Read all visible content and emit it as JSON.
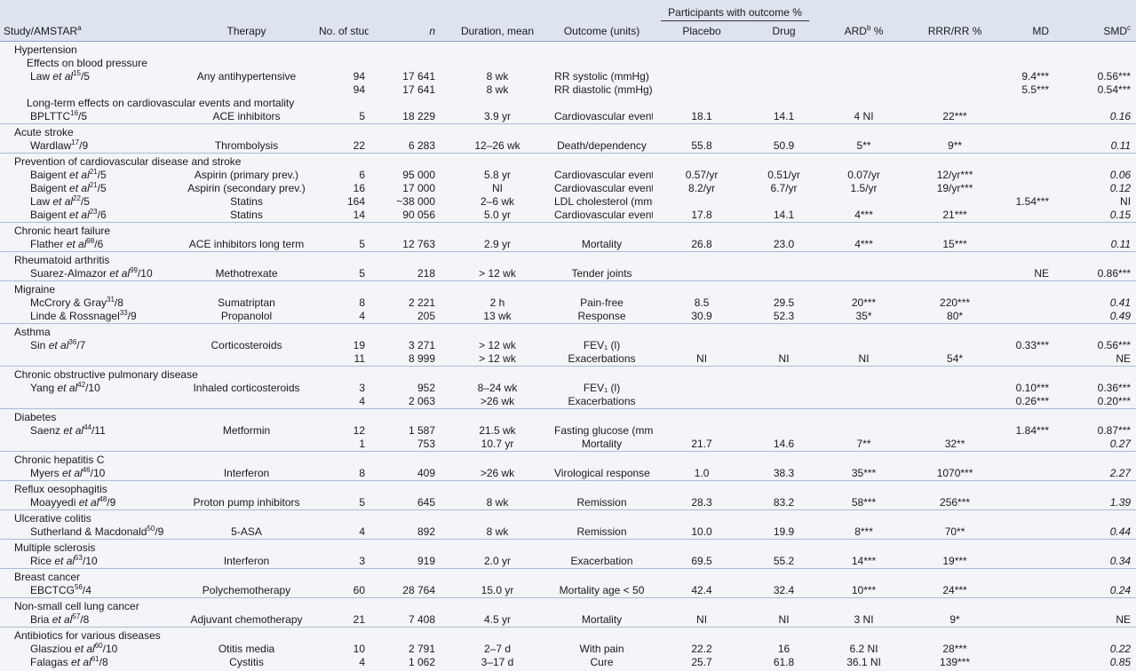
{
  "table": {
    "header": {
      "span": "Participants with outcome %",
      "study": {
        "text": "Study/AMSTAR",
        "sup": "a"
      },
      "therapy": "Therapy",
      "studies": "No. of studies",
      "n": "n",
      "duration": "Duration, mean",
      "outcome": "Outcome (units)",
      "placebo": "Placebo",
      "drug": "Drug",
      "ard": {
        "text": "ARD",
        "sup": "b",
        "rest": " %"
      },
      "rrr": "RRR/RR %",
      "md": "MD",
      "smd": {
        "text": "SMD",
        "sup": "c"
      }
    },
    "groups": [
      {
        "title": "Hypertension",
        "items": [
          {
            "subtitle": "Effects on blood pressure"
          },
          {
            "study": {
              "author": "Law",
              "et_al": "et al",
              "ref": "15",
              "amstar": "/5"
            },
            "cells": [
              "Any antihypertensive",
              "94",
              "17 641",
              "8 wk",
              "RR systolic (mmHg)",
              null,
              null,
              null,
              null,
              "9.4***",
              "0.56***"
            ],
            "smd_italic": false
          },
          {
            "cells": [
              null,
              "94",
              "17 641",
              "8 wk",
              "RR diastolic (mmHg)",
              null,
              null,
              null,
              null,
              "5.5***",
              "0.54***"
            ],
            "smd_italic": false
          },
          {
            "subtitle": "Long-term effects on cardiovascular events and mortality"
          },
          {
            "study": {
              "author": "BPLTTC",
              "ref": "16",
              "amstar": "/5"
            },
            "cells": [
              "ACE inhibitors",
              "5",
              "18 229",
              "3.9 yr",
              "Cardiovascular events",
              "18.1",
              "14.1",
              "4 NI",
              "22***",
              null,
              "0.16"
            ],
            "smd_italic": true
          }
        ]
      },
      {
        "title": "Acute stroke",
        "items": [
          {
            "study": {
              "author": "Wardlaw",
              "ref": "17",
              "amstar": "/9"
            },
            "cells": [
              "Thrombolysis",
              "22",
              "6 283",
              "12–26 wk",
              "Death/dependency",
              "55.8",
              "50.9",
              "5**",
              "9**",
              null,
              "0.11"
            ],
            "smd_italic": true
          }
        ]
      },
      {
        "title": "Prevention of cardiovascular disease and stroke",
        "items": [
          {
            "study": {
              "author": "Baigent",
              "et_al": "et al",
              "ref": "21",
              "amstar": "/5"
            },
            "cells": [
              "Aspirin (primary prev.)",
              "6",
              "95 000",
              "5.8 yr",
              "Cardiovascular events",
              "0.57/yr",
              "0.51/yr",
              "0.07/yr",
              "12/yr***",
              null,
              "0.06"
            ],
            "smd_italic": true
          },
          {
            "study": {
              "author": "Baigent",
              "et_al": "et al",
              "ref": "21",
              "amstar": "/5"
            },
            "cells": [
              "Aspirin (secondary prev.)",
              "16",
              "17 000",
              "NI",
              "Cardiovascular events",
              "8.2/yr",
              "6.7/yr",
              "1.5/yr",
              "19/yr***",
              null,
              "0.12"
            ],
            "smd_italic": true
          },
          {
            "study": {
              "author": "Law",
              "et_al": "et al",
              "ref": "22",
              "amstar": "/5"
            },
            "cells": [
              "Statins",
              "164",
              "~38 000",
              "2–6 wk",
              "LDL cholesterol (mmol/l)",
              null,
              null,
              null,
              null,
              "1.54***",
              "NI"
            ],
            "smd_italic": false
          },
          {
            "study": {
              "author": "Baigent",
              "et_al": "et al",
              "ref": "23",
              "amstar": "/6"
            },
            "cells": [
              "Statins",
              "14",
              "90 056",
              "5.0 yr",
              "Cardiovascular events",
              "17.8",
              "14.1",
              "4***",
              "21***",
              null,
              "0.15"
            ],
            "smd_italic": true
          }
        ]
      },
      {
        "title": "Chronic heart failure",
        "items": [
          {
            "study": {
              "author": "Flather",
              "et_al": "et al",
              "ref": "98",
              "amstar": "/6"
            },
            "cells": [
              "ACE inhibitors long term",
              "5",
              "12 763",
              "2.9 yr",
              "Mortality",
              "26.8",
              "23.0",
              "4***",
              "15***",
              null,
              "0.11"
            ],
            "smd_italic": true
          }
        ]
      },
      {
        "title": "Rheumatoid arthritis",
        "items": [
          {
            "study": {
              "author": "Suarez-Almazor",
              "et_al": "et al",
              "ref": "99",
              "amstar": "/10"
            },
            "cells": [
              "Methotrexate",
              "5",
              "218",
              "> 12 wk",
              "Tender joints",
              null,
              null,
              null,
              null,
              "NE",
              "0.86***"
            ],
            "smd_italic": false
          }
        ]
      },
      {
        "title": "Migraine",
        "items": [
          {
            "study": {
              "author": "McCrory & Gray",
              "ref": "31",
              "amstar": "/8"
            },
            "cells": [
              "Sumatriptan",
              "8",
              "2 221",
              "2 h",
              "Pain-free",
              "8.5",
              "29.5",
              "20***",
              "220***",
              null,
              "0.41"
            ],
            "smd_italic": true
          },
          {
            "study": {
              "author": "Linde & Rossnagel",
              "ref": "33",
              "amstar": "/9"
            },
            "cells": [
              "Propanolol",
              "4",
              "205",
              "13 wk",
              "Response",
              "30.9",
              "52.3",
              "35*",
              "80*",
              null,
              "0.49"
            ],
            "smd_italic": true
          }
        ]
      },
      {
        "title": "Asthma",
        "items": [
          {
            "study": {
              "author": "Sin",
              "et_al": "et al",
              "ref": "36",
              "amstar": "/7"
            },
            "cells": [
              "Corticosteroids",
              "19",
              "3 271",
              "> 12 wk",
              "FEV₁ (l)",
              null,
              null,
              null,
              null,
              "0.33***",
              "0.56***"
            ],
            "smd_italic": false
          },
          {
            "cells": [
              null,
              "11",
              "8 999",
              "> 12 wk",
              "Exacerbations",
              "NI",
              "NI",
              "NI",
              "54*",
              null,
              "NE"
            ],
            "smd_italic": false
          }
        ]
      },
      {
        "title": "Chronic obstructive pulmonary disease",
        "items": [
          {
            "study": {
              "author": "Yang",
              "et_al": "et al",
              "ref": "42",
              "amstar": "/10"
            },
            "cells": [
              "Inhaled corticosteroids",
              "3",
              "952",
              "8–24 wk",
              "FEV₁ (l)",
              null,
              null,
              null,
              null,
              "0.10***",
              "0.36***"
            ],
            "smd_italic": false
          },
          {
            "cells": [
              null,
              "4",
              "2 063",
              ">26 wk",
              "Exacerbations",
              null,
              null,
              null,
              null,
              "0.26***",
              "0.20***"
            ],
            "smd_italic": false
          }
        ]
      },
      {
        "title": "Diabetes",
        "items": [
          {
            "study": {
              "author": "Saenz",
              "et_al": "et al",
              "ref": "44",
              "amstar": "/11"
            },
            "cells": [
              "Metformin",
              "12",
              "1 587",
              "21.5 wk",
              "Fasting glucose (mmol/l)",
              null,
              null,
              null,
              null,
              "1.84***",
              "0.87***"
            ],
            "smd_italic": false
          },
          {
            "cells": [
              null,
              "1",
              "753",
              "10.7 yr",
              "Mortality",
              "21.7",
              "14.6",
              "7**",
              "32**",
              null,
              "0.27"
            ],
            "smd_italic": true
          }
        ]
      },
      {
        "title": "Chronic hepatitis C",
        "items": [
          {
            "study": {
              "author": "Myers",
              "et_al": "et al",
              "ref": "46",
              "amstar": "/10"
            },
            "cells": [
              "Interferon",
              "8",
              "409",
              ">26 wk",
              "Virological response",
              "1.0",
              "38.3",
              "35***",
              "1070***",
              null,
              "2.27"
            ],
            "smd_italic": true
          }
        ]
      },
      {
        "title": "Reflux oesophagitis",
        "items": [
          {
            "study": {
              "author": "Moayyedi",
              "et_al": "et al",
              "ref": "48",
              "amstar": "/9"
            },
            "cells": [
              "Proton pump inhibitors",
              "5",
              "645",
              "8 wk",
              "Remission",
              "28.3",
              "83.2",
              "58***",
              "256***",
              null,
              "1.39"
            ],
            "smd_italic": true
          }
        ]
      },
      {
        "title": "Ulcerative colitis",
        "items": [
          {
            "study": {
              "author": "Sutherland & Macdonald",
              "ref": "50",
              "amstar": "/9"
            },
            "cells": [
              "5-ASA",
              "4",
              "892",
              "8 wk",
              "Remission",
              "10.0",
              "19.9",
              "8***",
              "70**",
              null,
              "0.44"
            ],
            "smd_italic": true
          }
        ]
      },
      {
        "title": "Multiple sclerosis",
        "items": [
          {
            "study": {
              "author": "Rice",
              "et_al": "et al",
              "ref": "53",
              "amstar": "/10"
            },
            "cells": [
              "Interferon",
              "3",
              "919",
              "2.0 yr",
              "Exacerbation",
              "69.5",
              "55.2",
              "14***",
              "19***",
              null,
              "0.34"
            ],
            "smd_italic": true
          }
        ]
      },
      {
        "title": "Breast cancer",
        "items": [
          {
            "study": {
              "author": "EBCTCG",
              "ref": "56",
              "amstar": "/4"
            },
            "cells": [
              "Polychemotherapy",
              "60",
              "28 764",
              "15.0 yr",
              "Mortality age < 50",
              "42.4",
              "32.4",
              "10***",
              "24***",
              null,
              "0.24"
            ],
            "smd_italic": true
          }
        ]
      },
      {
        "title": "Non-small cell lung cancer",
        "items": [
          {
            "study": {
              "author": "Bria",
              "et_al": "et al",
              "ref": "57",
              "amstar": "/8"
            },
            "cells": [
              "Adjuvant chemotherapy",
              "21",
              "7 408",
              "4.5 yr",
              "Mortality",
              "NI",
              "NI",
              "3 NI",
              "9*",
              null,
              "NE"
            ],
            "smd_italic": false
          }
        ]
      },
      {
        "title": "Antibiotics for various diseases",
        "items": [
          {
            "study": {
              "author": "Glasziou",
              "et_al": "et al",
              "ref": "60",
              "amstar": "/10"
            },
            "cells": [
              "Otitis media",
              "10",
              "2 791",
              "2–7 d",
              "With pain",
              "22.2",
              "16",
              "6.2 NI",
              "28***",
              null,
              "0.22"
            ],
            "smd_italic": true
          },
          {
            "study": {
              "author": "Falagas",
              "et_al": "et al",
              "ref": "61",
              "amstar": "/8"
            },
            "cells": [
              "Cystitis",
              "4",
              "1 062",
              "3–17 d",
              "Cure",
              "25.7",
              "61.8",
              "36.1 NI",
              "139***",
              null,
              "0.85"
            ],
            "smd_italic": true
          }
        ]
      }
    ]
  }
}
